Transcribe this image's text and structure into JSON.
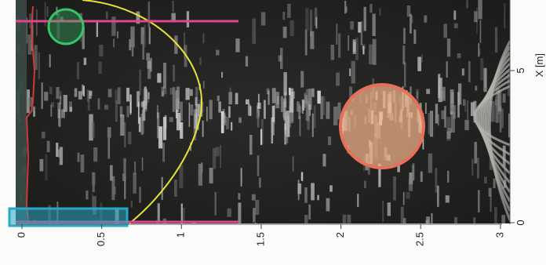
{
  "figure": {
    "x_axis": {
      "title": "X [m]",
      "ticks": [
        {
          "value": 0,
          "label": "0"
        },
        {
          "value": 5,
          "label": "5"
        }
      ]
    },
    "depth_axis": {
      "ticks": [
        {
          "value": 0,
          "label": "0"
        },
        {
          "value": 0.5,
          "label": "0.5"
        },
        {
          "value": 1,
          "label": "1"
        },
        {
          "value": 1.5,
          "label": "1.5"
        },
        {
          "value": 2,
          "label": "2"
        },
        {
          "value": 2.5,
          "label": "2.5"
        },
        {
          "value": 3,
          "label": "3"
        }
      ]
    },
    "colors": {
      "background": "#2a2a28",
      "magenta_lines": "#e0458e",
      "yellow_curve": "#e6e23a",
      "green_circle": "#36c46a",
      "orange_circle_stroke": "#e8705a",
      "orange_circle_fill": "#f2b48a",
      "cyan_box": "#2aa7c4",
      "red_trace": "#c93a3a"
    }
  }
}
